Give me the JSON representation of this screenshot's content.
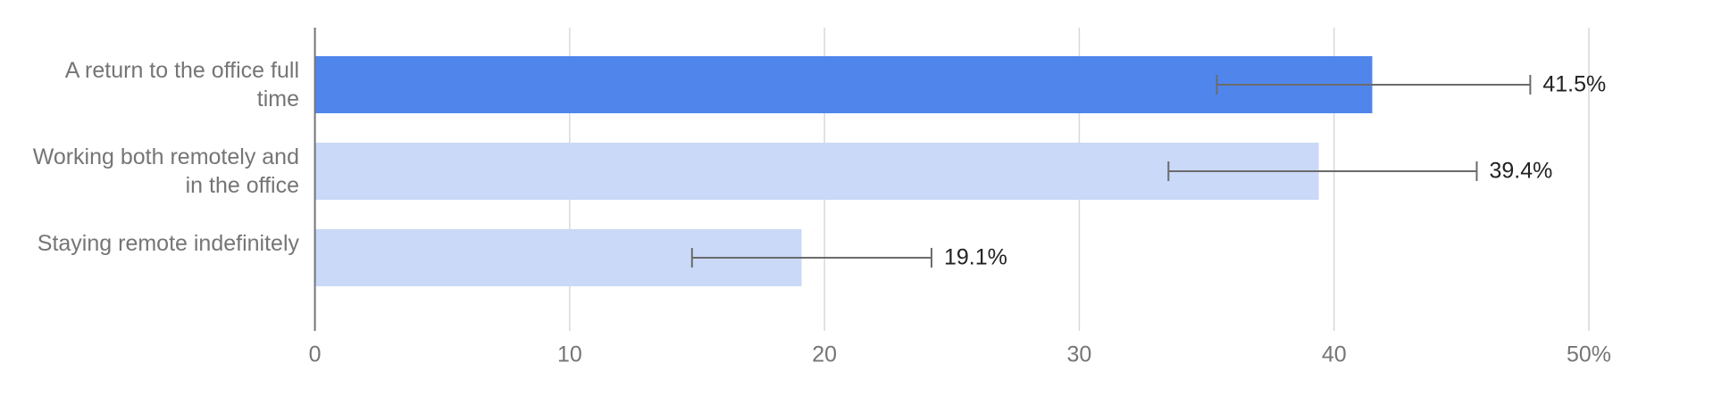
{
  "chart_data": {
    "type": "bar",
    "orientation": "horizontal",
    "categories": [
      "A return to the office full time",
      "Working both remotely and in the office",
      "Staying remote indefinitely"
    ],
    "values": [
      41.5,
      39.4,
      19.1
    ],
    "value_labels": [
      "41.5%",
      "39.4%",
      "19.1%"
    ],
    "errors": [
      [
        6.1,
        6.2
      ],
      [
        5.9,
        6.2
      ],
      [
        4.3,
        5.1
      ]
    ],
    "colors": [
      "#5086ec",
      "#c9d9f7",
      "#c9d9f7"
    ],
    "xlim": [
      0,
      50
    ],
    "xticks": [
      0,
      10,
      20,
      30,
      40,
      {
        "value": 50,
        "label": "50%"
      }
    ],
    "grid": true
  }
}
